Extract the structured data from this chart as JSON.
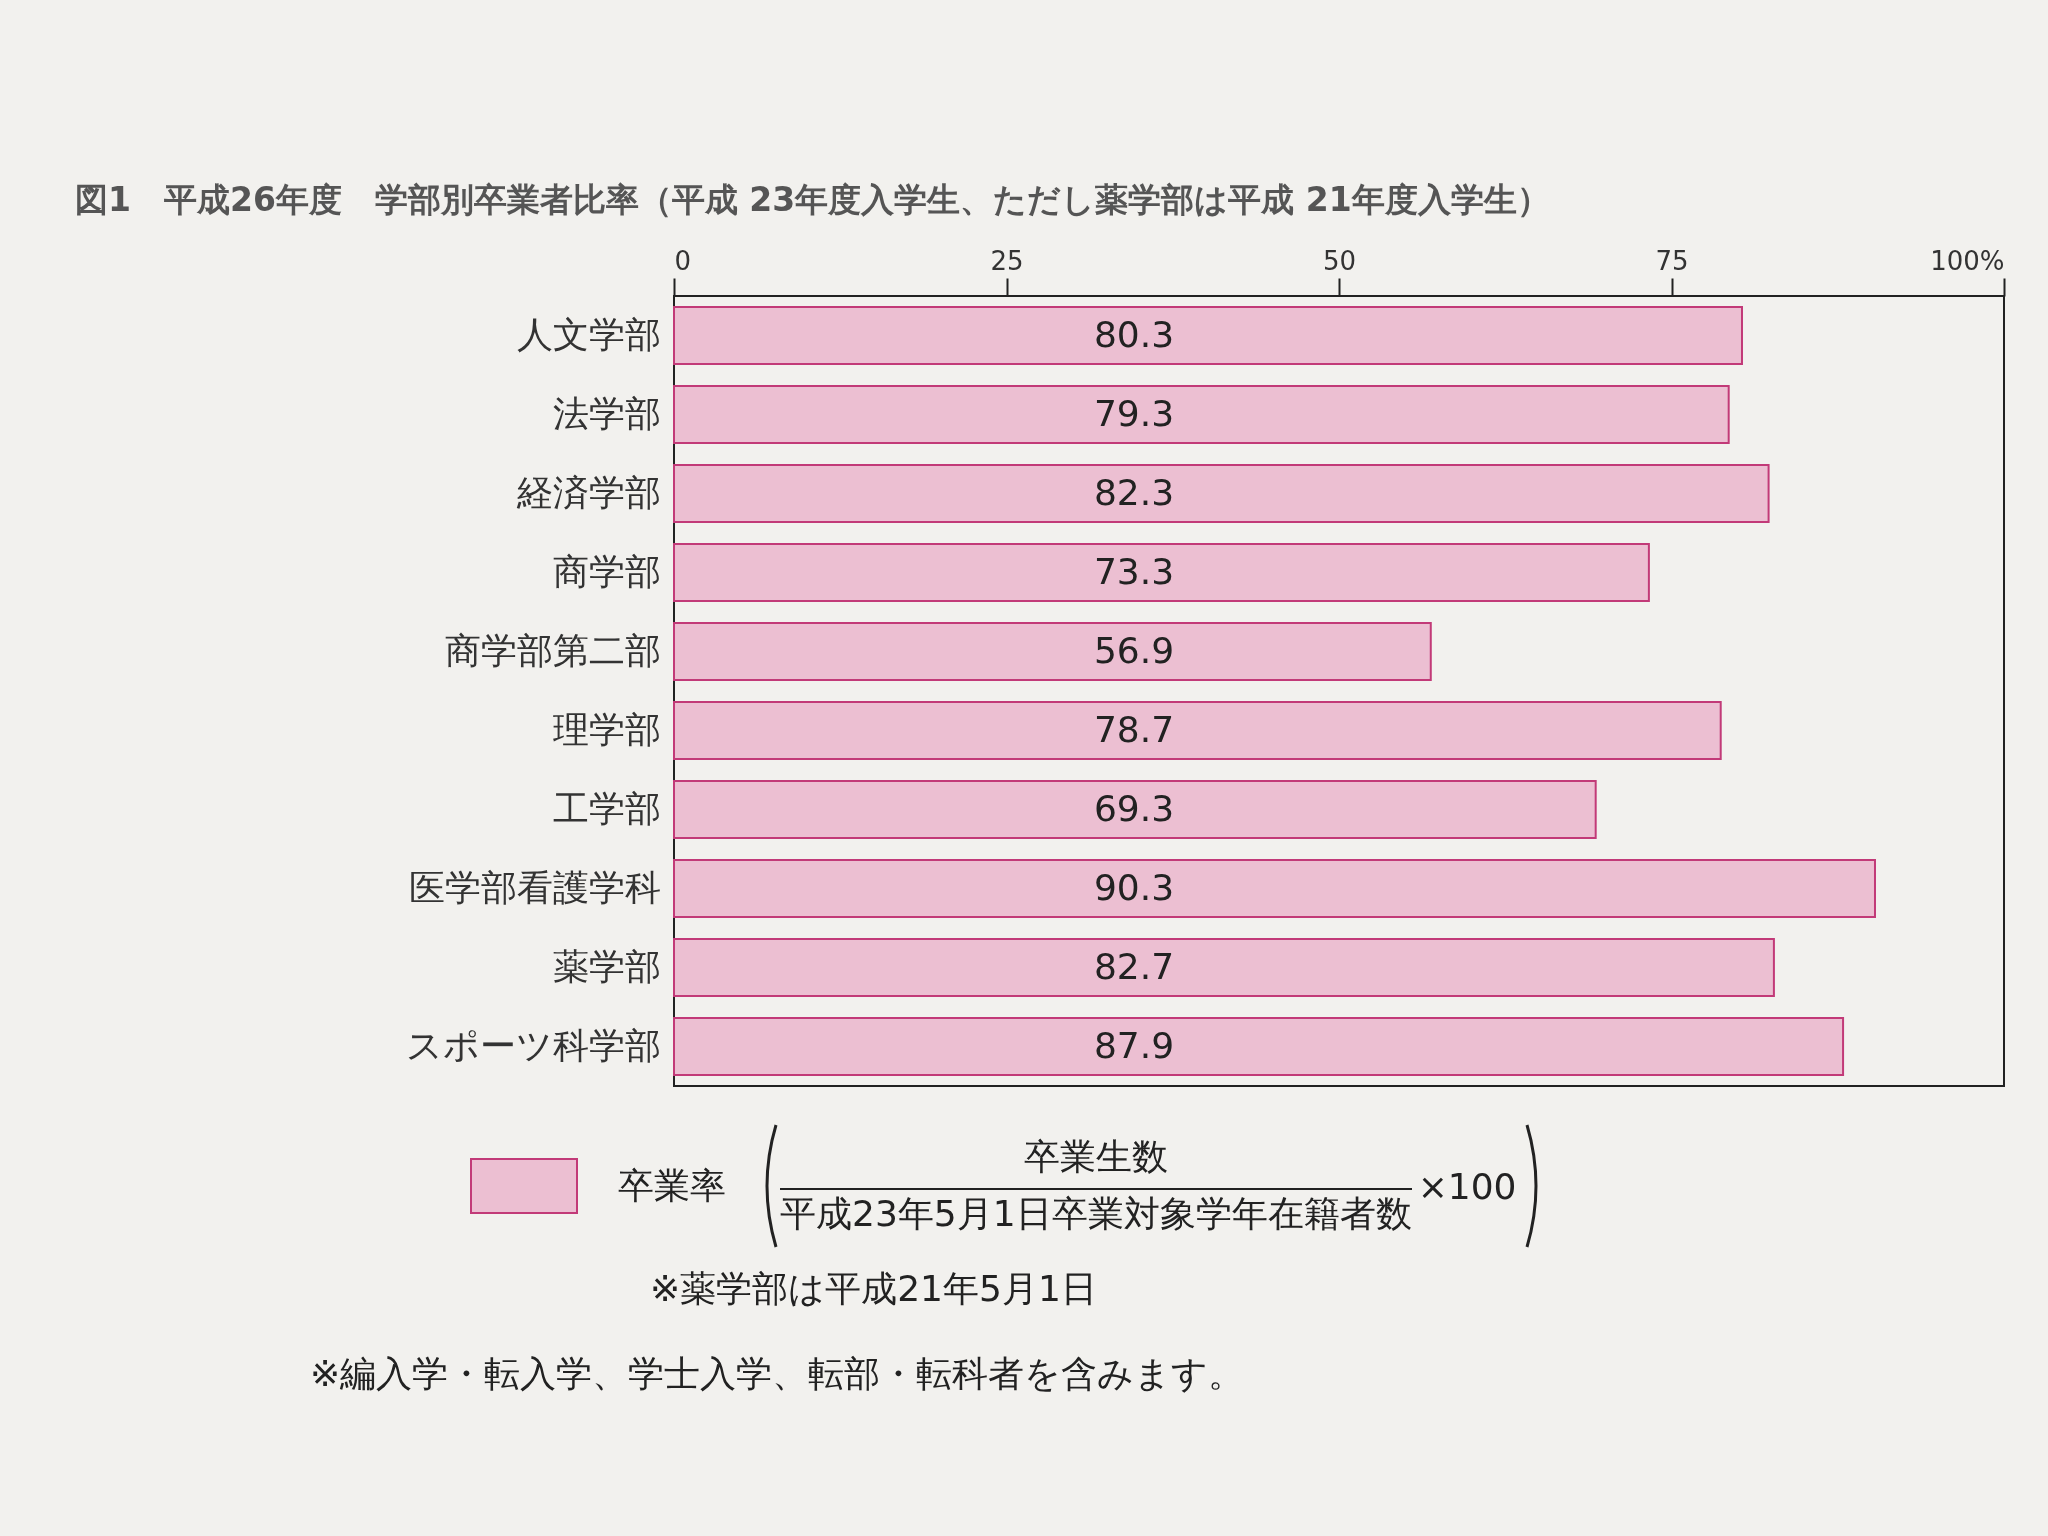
{
  "chart_data": {
    "type": "bar",
    "orientation": "horizontal",
    "title": "図1　平成26年度　学部別卒業者比率（平成 23年度入学生、ただし薬学部は平成 21年度入学生）",
    "categories": [
      "人文学部",
      "法学部",
      "経済学部",
      "商学部",
      "商学部第二部",
      "理学部",
      "工学部",
      "医学部看護学科",
      "薬学部",
      "スポーツ科学部"
    ],
    "series": [
      {
        "name": "卒業率",
        "color": "#ecbfd2",
        "values": [
          80.3,
          79.3,
          82.3,
          73.3,
          56.9,
          78.7,
          69.3,
          90.3,
          82.7,
          87.9
        ]
      }
    ],
    "xlim": [
      0,
      100
    ],
    "xticks": [
      0,
      25,
      50,
      75,
      {
        "value": 100,
        "label": "100%"
      }
    ],
    "data_labels": true,
    "legend": "bottom",
    "grid": false,
    "annotations": [
      "卒業生数",
      "平成23年5月1日卒業対象学年在籍者数",
      "×100",
      "※薬学部は平成21年5月1日",
      "※編入学・転入学、学士入学、転部・転科者を含みます。"
    ]
  }
}
